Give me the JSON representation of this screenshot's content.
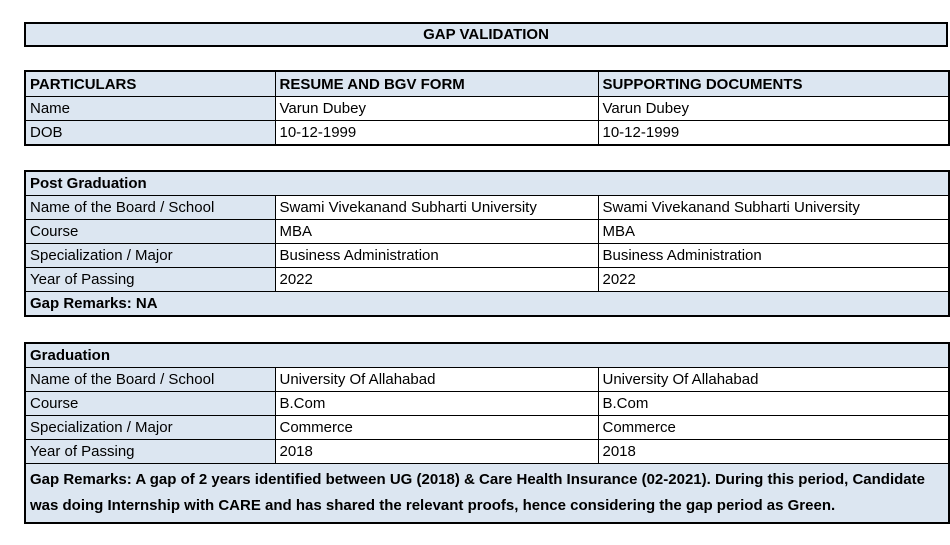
{
  "title": "GAP VALIDATION",
  "colors": {
    "fill_blue": "#dce6f1",
    "border": "#000000",
    "cell_bg": "#ffffff",
    "text": "#000000"
  },
  "particulars_table": {
    "headers": [
      "PARTICULARS",
      "RESUME AND BGV FORM",
      "SUPPORTING DOCUMENTS"
    ],
    "rows": [
      {
        "label": "Name",
        "resume": "Varun Dubey",
        "supporting": "Varun Dubey"
      },
      {
        "label": "DOB",
        "resume": "10-12-1999",
        "supporting": "10-12-1999"
      }
    ]
  },
  "post_graduation": {
    "section_title": "Post Graduation",
    "rows": [
      {
        "label": "Name of the Board / School",
        "resume": "Swami Vivekanand Subharti University",
        "supporting": "Swami Vivekanand Subharti University"
      },
      {
        "label": "Course",
        "resume": "MBA",
        "supporting": "MBA"
      },
      {
        "label": "Specialization / Major",
        "resume": "Business Administration",
        "supporting": "Business Administration"
      },
      {
        "label": "Year of Passing",
        "resume": "2022",
        "supporting": "2022"
      }
    ],
    "gap_remarks": "Gap Remarks: NA"
  },
  "graduation": {
    "section_title": "Graduation",
    "rows": [
      {
        "label": "Name of the Board / School",
        "resume": "University Of Allahabad",
        "supporting": "University Of Allahabad"
      },
      {
        "label": "Course",
        "resume": "B.Com",
        "supporting": "B.Com"
      },
      {
        "label": "Specialization / Major",
        "resume": "Commerce",
        "supporting": "Commerce"
      },
      {
        "label": "Year of Passing",
        "resume": "2018",
        "supporting": "2018"
      }
    ],
    "gap_remarks": "Gap Remarks: A gap of 2 years identified between UG (2018) & Care Health Insurance (02-2021). During this period, Candidate was doing Internship with CARE and has shared the relevant proofs, hence considering the gap period as Green."
  }
}
